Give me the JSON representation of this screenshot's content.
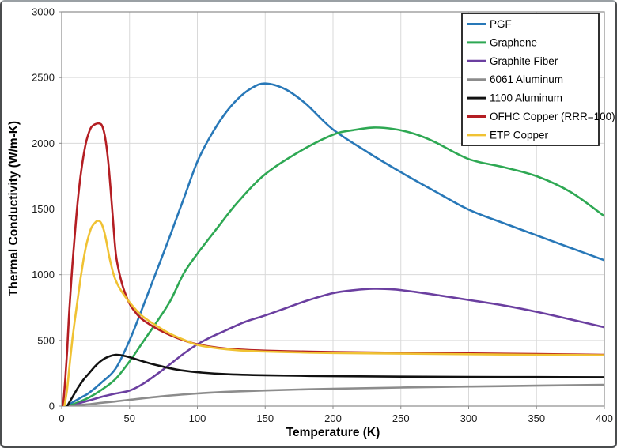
{
  "figure": {
    "background": "#ffffff",
    "outer_border_color": "#4a4c4e",
    "plot_border_color": "#8c8c8c",
    "gridline_color": "#d9d9d9"
  },
  "chart_data": {
    "type": "line",
    "title": "",
    "xlabel": "Temperature (K)",
    "ylabel": "Thermal Conductivity (W/m-K)",
    "xlim": [
      0,
      400
    ],
    "ylim": [
      0,
      3000
    ],
    "xticks": [
      0,
      50,
      100,
      150,
      200,
      250,
      300,
      350,
      400
    ],
    "yticks": [
      0,
      500,
      1000,
      1500,
      2000,
      2500,
      3000
    ],
    "grid": true,
    "legend_position": "top-right",
    "series": [
      {
        "name": "PGF",
        "color": "#2878B8",
        "points": [
          [
            3,
            0
          ],
          [
            5,
            10
          ],
          [
            10,
            40
          ],
          [
            15,
            70
          ],
          [
            20,
            100
          ],
          [
            30,
            185
          ],
          [
            40,
            290
          ],
          [
            50,
            500
          ],
          [
            60,
            760
          ],
          [
            70,
            1030
          ],
          [
            80,
            1300
          ],
          [
            90,
            1580
          ],
          [
            100,
            1860
          ],
          [
            110,
            2060
          ],
          [
            120,
            2220
          ],
          [
            130,
            2340
          ],
          [
            140,
            2420
          ],
          [
            150,
            2455
          ],
          [
            165,
            2410
          ],
          [
            180,
            2300
          ],
          [
            200,
            2105
          ],
          [
            225,
            1935
          ],
          [
            250,
            1780
          ],
          [
            275,
            1635
          ],
          [
            300,
            1495
          ],
          [
            325,
            1395
          ],
          [
            350,
            1300
          ],
          [
            375,
            1205
          ],
          [
            400,
            1110
          ]
        ]
      },
      {
        "name": "Graphene",
        "color": "#2EA853",
        "points": [
          [
            5,
            0
          ],
          [
            10,
            20
          ],
          [
            20,
            65
          ],
          [
            30,
            128
          ],
          [
            40,
            210
          ],
          [
            50,
            340
          ],
          [
            60,
            490
          ],
          [
            70,
            640
          ],
          [
            80,
            800
          ],
          [
            90,
            1010
          ],
          [
            100,
            1160
          ],
          [
            115,
            1360
          ],
          [
            130,
            1555
          ],
          [
            150,
            1765
          ],
          [
            175,
            1935
          ],
          [
            200,
            2065
          ],
          [
            215,
            2100
          ],
          [
            230,
            2120
          ],
          [
            245,
            2108
          ],
          [
            260,
            2072
          ],
          [
            275,
            2010
          ],
          [
            300,
            1880
          ],
          [
            325,
            1820
          ],
          [
            350,
            1750
          ],
          [
            375,
            1630
          ],
          [
            400,
            1445
          ]
        ]
      },
      {
        "name": "Graphite Fiber",
        "color": "#6B3FA0",
        "points": [
          [
            8,
            0
          ],
          [
            15,
            28
          ],
          [
            20,
            42
          ],
          [
            30,
            72
          ],
          [
            40,
            96
          ],
          [
            50,
            118
          ],
          [
            60,
            170
          ],
          [
            75,
            280
          ],
          [
            90,
            400
          ],
          [
            100,
            470
          ],
          [
            110,
            525
          ],
          [
            120,
            572
          ],
          [
            135,
            640
          ],
          [
            150,
            690
          ],
          [
            165,
            745
          ],
          [
            180,
            800
          ],
          [
            200,
            860
          ],
          [
            215,
            882
          ],
          [
            230,
            893
          ],
          [
            245,
            888
          ],
          [
            260,
            870
          ],
          [
            280,
            840
          ],
          [
            300,
            808
          ],
          [
            325,
            768
          ],
          [
            350,
            718
          ],
          [
            375,
            660
          ],
          [
            400,
            600
          ]
        ]
      },
      {
        "name": "6061 Aluminum",
        "color": "#8C8C8C",
        "points": [
          [
            5,
            0
          ],
          [
            10,
            6
          ],
          [
            20,
            14
          ],
          [
            30,
            26
          ],
          [
            40,
            36
          ],
          [
            50,
            48
          ],
          [
            75,
            76
          ],
          [
            100,
            96
          ],
          [
            125,
            110
          ],
          [
            150,
            119
          ],
          [
            175,
            126
          ],
          [
            200,
            132
          ],
          [
            250,
            141
          ],
          [
            300,
            149
          ],
          [
            350,
            156
          ],
          [
            400,
            162
          ]
        ]
      },
      {
        "name": "1100 Aluminum",
        "color": "#111111",
        "points": [
          [
            4,
            0
          ],
          [
            8,
            70
          ],
          [
            12,
            140
          ],
          [
            16,
            200
          ],
          [
            20,
            248
          ],
          [
            25,
            308
          ],
          [
            30,
            352
          ],
          [
            35,
            378
          ],
          [
            40,
            390
          ],
          [
            45,
            385
          ],
          [
            50,
            372
          ],
          [
            60,
            340
          ],
          [
            70,
            312
          ],
          [
            85,
            278
          ],
          [
            100,
            258
          ],
          [
            120,
            244
          ],
          [
            150,
            235
          ],
          [
            200,
            228
          ],
          [
            250,
            224
          ],
          [
            300,
            222
          ],
          [
            350,
            221
          ],
          [
            400,
            220
          ]
        ]
      },
      {
        "name": "OFHC Copper (RRR=100)",
        "color": "#B41E23",
        "points": [
          [
            1,
            0
          ],
          [
            2,
            120
          ],
          [
            3,
            260
          ],
          [
            4,
            420
          ],
          [
            5,
            620
          ],
          [
            6,
            790
          ],
          [
            8,
            1090
          ],
          [
            10,
            1350
          ],
          [
            12,
            1580
          ],
          [
            14,
            1760
          ],
          [
            16,
            1900
          ],
          [
            18,
            2010
          ],
          [
            20,
            2080
          ],
          [
            22,
            2125
          ],
          [
            25,
            2147
          ],
          [
            28,
            2150
          ],
          [
            30,
            2128
          ],
          [
            32,
            2045
          ],
          [
            34,
            1890
          ],
          [
            36,
            1660
          ],
          [
            38,
            1390
          ],
          [
            40,
            1150
          ],
          [
            43,
            990
          ],
          [
            46,
            880
          ],
          [
            50,
            780
          ],
          [
            55,
            705
          ],
          [
            60,
            655
          ],
          [
            70,
            590
          ],
          [
            80,
            540
          ],
          [
            90,
            500
          ],
          [
            100,
            470
          ],
          [
            115,
            445
          ],
          [
            130,
            431
          ],
          [
            150,
            422
          ],
          [
            175,
            416
          ],
          [
            200,
            412
          ],
          [
            250,
            406
          ],
          [
            300,
            401
          ],
          [
            350,
            396
          ],
          [
            400,
            391
          ]
        ]
      },
      {
        "name": "ETP Copper",
        "color": "#F0C233",
        "points": [
          [
            2,
            0
          ],
          [
            4,
            130
          ],
          [
            6,
            330
          ],
          [
            8,
            520
          ],
          [
            10,
            680
          ],
          [
            12,
            830
          ],
          [
            14,
            980
          ],
          [
            16,
            1110
          ],
          [
            18,
            1220
          ],
          [
            20,
            1300
          ],
          [
            22,
            1360
          ],
          [
            25,
            1400
          ],
          [
            27,
            1410
          ],
          [
            29,
            1395
          ],
          [
            31,
            1340
          ],
          [
            33,
            1250
          ],
          [
            35,
            1140
          ],
          [
            38,
            1010
          ],
          [
            41,
            930
          ],
          [
            45,
            860
          ],
          [
            50,
            790
          ],
          [
            55,
            730
          ],
          [
            60,
            680
          ],
          [
            70,
            610
          ],
          [
            80,
            550
          ],
          [
            90,
            505
          ],
          [
            100,
            466
          ],
          [
            115,
            440
          ],
          [
            130,
            425
          ],
          [
            150,
            415
          ],
          [
            175,
            409
          ],
          [
            200,
            404
          ],
          [
            250,
            399
          ],
          [
            300,
            395
          ],
          [
            350,
            391
          ],
          [
            400,
            387
          ]
        ]
      }
    ]
  }
}
